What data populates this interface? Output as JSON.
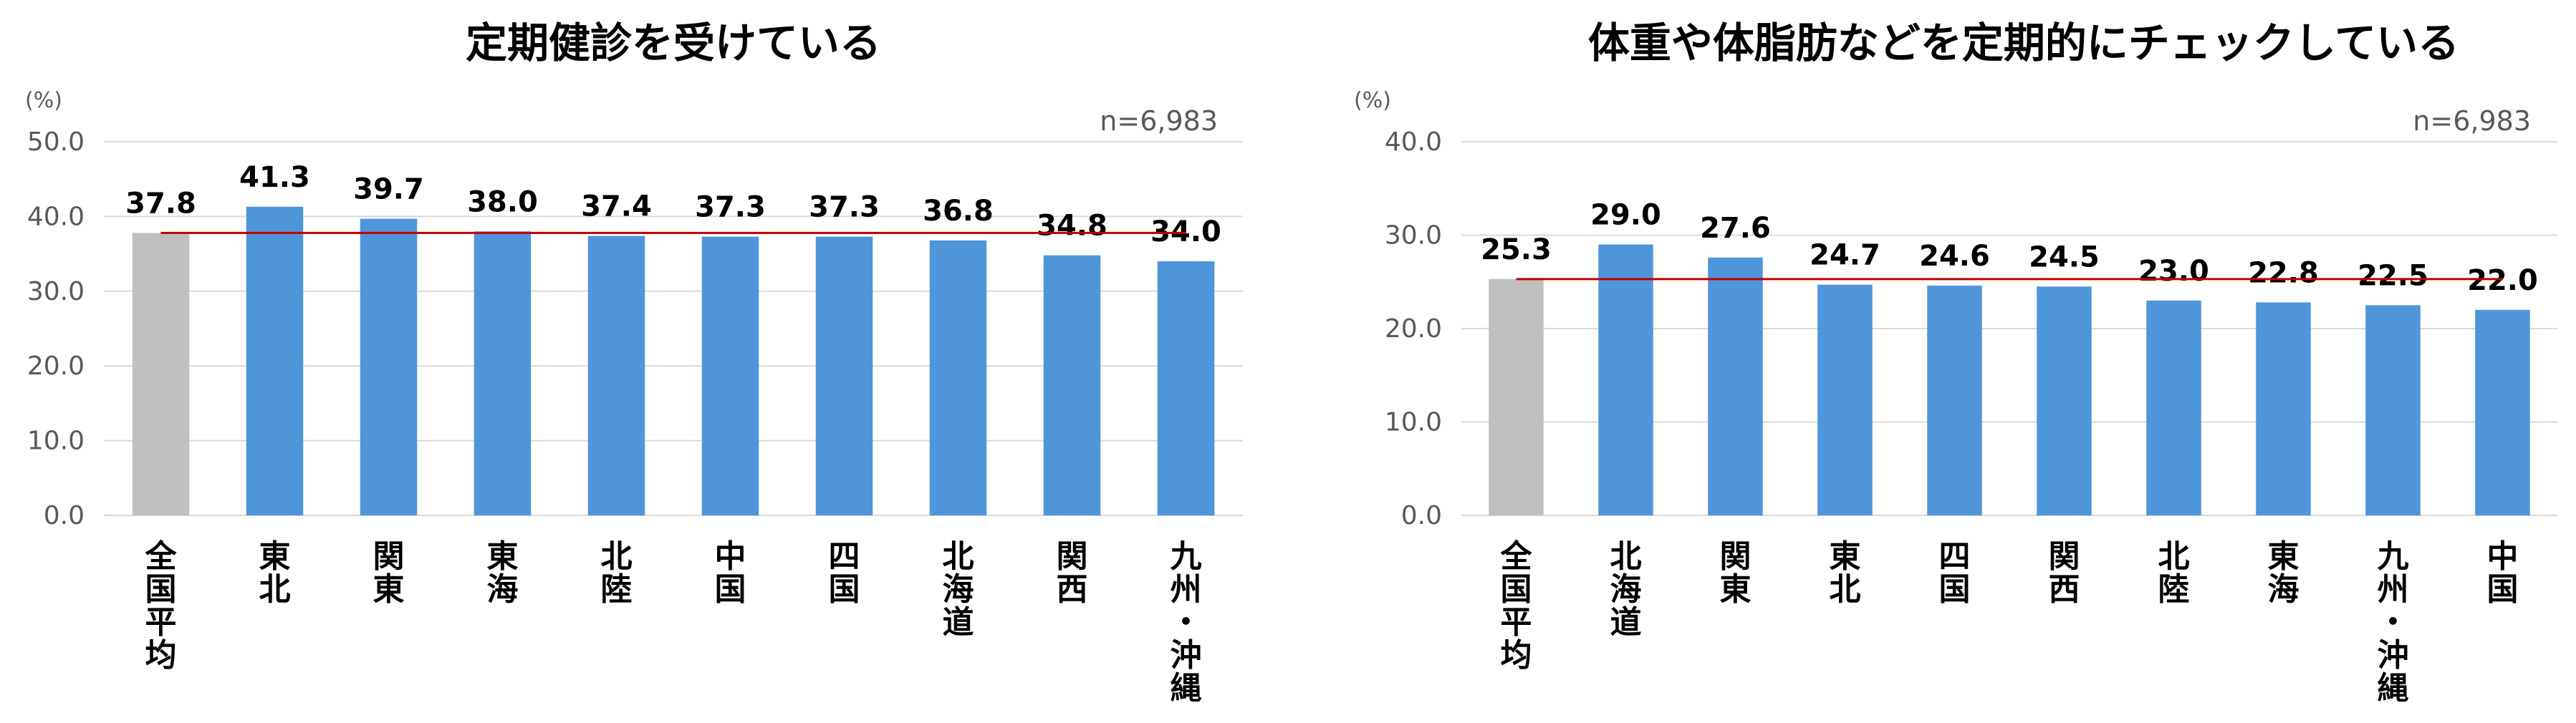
{
  "chart_data": [
    {
      "type": "bar",
      "title": "定期健診を受けている",
      "unit_label": "(%)",
      "note": "n=6,983",
      "categories": [
        "全国平均",
        "東北",
        "関東",
        "東海",
        "北陸",
        "中国",
        "四国",
        "北海道",
        "関西",
        "九州・沖縄"
      ],
      "values": [
        37.8,
        41.3,
        39.7,
        38.0,
        37.4,
        37.3,
        37.3,
        36.8,
        34.8,
        34.0
      ],
      "value_labels": [
        "37.8",
        "41.3",
        "39.7",
        "38.0",
        "37.4",
        "37.3",
        "37.3",
        "36.8",
        "34.8",
        "34.0"
      ],
      "reference_line": 37.8,
      "ylim": [
        0,
        50
      ],
      "yticks": [
        "0.0",
        "10.0",
        "20.0",
        "30.0",
        "40.0",
        "50.0"
      ],
      "ytick_values": [
        0,
        10,
        20,
        30,
        40,
        50
      ],
      "grid": true,
      "colors": {
        "average_bar": "#bfbfbf",
        "bar": "#4f95d9",
        "reference_line": "#c00000",
        "grid": "#d9d9d9"
      }
    },
    {
      "type": "bar",
      "title": "体重や体脂肪などを定期的にチェックしている",
      "unit_label": "(%)",
      "note": "n=6,983",
      "categories": [
        "全国平均",
        "北海道",
        "関東",
        "東北",
        "四国",
        "関西",
        "北陸",
        "東海",
        "九州・沖縄",
        "中国"
      ],
      "values": [
        25.3,
        29.0,
        27.6,
        24.7,
        24.6,
        24.5,
        23.0,
        22.8,
        22.5,
        22.0
      ],
      "value_labels": [
        "25.3",
        "29.0",
        "27.6",
        "24.7",
        "24.6",
        "24.5",
        "23.0",
        "22.8",
        "22.5",
        "22.0"
      ],
      "reference_line": 25.3,
      "ylim": [
        0,
        40
      ],
      "yticks": [
        "0.0",
        "10.0",
        "20.0",
        "30.0",
        "40.0"
      ],
      "ytick_values": [
        0,
        10,
        20,
        30,
        40
      ],
      "grid": true,
      "colors": {
        "average_bar": "#bfbfbf",
        "bar": "#4f95d9",
        "reference_line": "#c00000",
        "grid": "#d9d9d9"
      }
    }
  ]
}
